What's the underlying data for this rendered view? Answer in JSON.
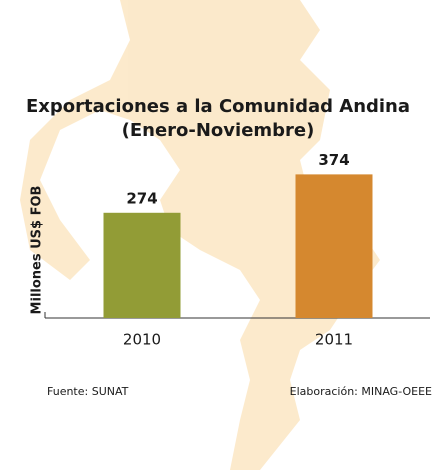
{
  "chart_data": {
    "type": "bar",
    "title": "Exportaciones a la Comunidad Andina",
    "subtitle": "(Enero-Noviembre)",
    "y_label": "Millones US$ FOB",
    "categories": [
      "2010",
      "2011"
    ],
    "values": [
      274,
      374
    ],
    "colors": [
      "#929c36",
      "#d5882f"
    ],
    "source": "Fuente: SUNAT",
    "credit": "Elaboración: MINAG-OEEE"
  }
}
